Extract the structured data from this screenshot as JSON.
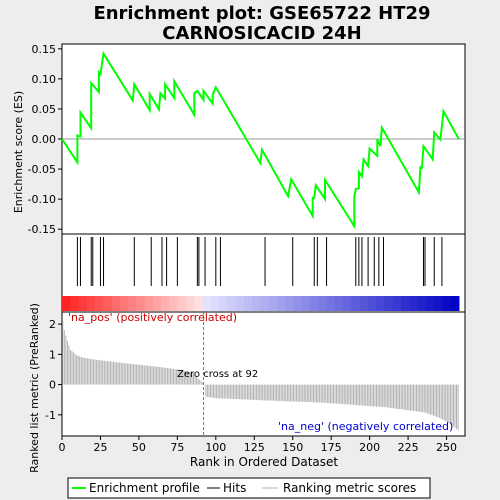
{
  "title_line1": "Enrichment plot: GSE65722 HT29",
  "title_line2": "CARNOSICACID 24H",
  "chart_data": [
    {
      "panel": "enrichment",
      "type": "line",
      "ylabel": "Enrichment score (ES)",
      "xlim": [
        0,
        262
      ],
      "ylim": [
        -0.158,
        0.158
      ],
      "yticks": [
        -0.15,
        -0.1,
        -0.05,
        0.0,
        0.05,
        0.1,
        0.15
      ],
      "ytick_labels": [
        "-0.15",
        "-0.10",
        "-0.05",
        "0.00",
        "0.05",
        "0.10",
        "0.15"
      ],
      "grid": false,
      "color": "#00ff00",
      "points": [
        [
          0,
          0.0
        ],
        [
          10,
          -0.039
        ],
        [
          10,
          0.006
        ],
        [
          12,
          0.004
        ],
        [
          12,
          0.044
        ],
        [
          19,
          0.018
        ],
        [
          19,
          0.093
        ],
        [
          24,
          0.078
        ],
        [
          24,
          0.111
        ],
        [
          25,
          0.108
        ],
        [
          25,
          0.108
        ],
        [
          27,
          0.142
        ],
        [
          46,
          0.064
        ],
        [
          47,
          0.091
        ],
        [
          57,
          0.048
        ],
        [
          57,
          0.075
        ],
        [
          63,
          0.049
        ],
        [
          64,
          0.076
        ],
        [
          67,
          0.067
        ],
        [
          67,
          0.091
        ],
        [
          73,
          0.068
        ],
        [
          73,
          0.096
        ],
        [
          86,
          0.04
        ],
        [
          86,
          0.076
        ],
        [
          88,
          0.08
        ],
        [
          92,
          0.065
        ],
        [
          92,
          0.08
        ],
        [
          98,
          0.059
        ],
        [
          98,
          0.074
        ],
        [
          100,
          0.086
        ],
        [
          129,
          -0.04
        ],
        [
          130,
          -0.018
        ],
        [
          147,
          -0.095
        ],
        [
          149,
          -0.067
        ],
        [
          163,
          -0.128
        ],
        [
          163,
          -0.098
        ],
        [
          164,
          -0.098
        ],
        [
          165,
          -0.077
        ],
        [
          171,
          -0.1
        ],
        [
          171,
          -0.068
        ],
        [
          190,
          -0.145
        ],
        [
          190,
          -0.096
        ],
        [
          191,
          -0.083
        ],
        [
          193,
          -0.082
        ],
        [
          193,
          -0.055
        ],
        [
          195,
          -0.062
        ],
        [
          196,
          -0.034
        ],
        [
          199,
          -0.045
        ],
        [
          200,
          -0.016
        ],
        [
          205,
          -0.028
        ],
        [
          205,
          0.0
        ],
        [
          207,
          -0.012
        ],
        [
          208,
          0.019
        ],
        [
          232,
          -0.089
        ],
        [
          233,
          -0.047
        ],
        [
          234,
          -0.048
        ],
        [
          235,
          -0.012
        ],
        [
          241,
          -0.034
        ],
        [
          242,
          0.011
        ],
        [
          246,
          -0.001
        ],
        [
          248,
          0.046
        ],
        [
          258,
          0.0
        ]
      ]
    },
    {
      "panel": "hits",
      "type": "scatter",
      "xlim": [
        0,
        262
      ],
      "hit_ranks": [
        10,
        12,
        19,
        20,
        25,
        27,
        47,
        58,
        65,
        68,
        75,
        88,
        89,
        93,
        100,
        103,
        132,
        150,
        164,
        166,
        172,
        191,
        193,
        195,
        199,
        203,
        206,
        209,
        235,
        236,
        242,
        247
      ]
    },
    {
      "panel": "ranked_metric",
      "type": "bar",
      "ylabel": "Ranked list metric (PreRanked)",
      "xlabel": "Rank in Ordered Dataset",
      "xlim": [
        0,
        262
      ],
      "ylim": [
        -1.7,
        2.4
      ],
      "xticks": [
        0,
        25,
        50,
        75,
        100,
        125,
        150,
        175,
        200,
        225,
        250
      ],
      "yticks": [
        -1,
        0,
        1,
        2
      ],
      "color": "#b0b0b0",
      "n": 258,
      "zero_cross": 92,
      "anchors": [
        [
          0,
          2.1
        ],
        [
          1,
          1.8
        ],
        [
          3,
          1.45
        ],
        [
          5,
          1.15
        ],
        [
          9,
          0.97
        ],
        [
          14,
          0.88
        ],
        [
          25,
          0.8
        ],
        [
          45,
          0.68
        ],
        [
          60,
          0.6
        ],
        [
          75,
          0.5
        ],
        [
          85,
          0.38
        ],
        [
          91,
          0.05
        ],
        [
          92,
          0.0
        ],
        [
          93,
          -0.4
        ],
        [
          100,
          -0.45
        ],
        [
          130,
          -0.52
        ],
        [
          170,
          -0.6
        ],
        [
          210,
          -0.75
        ],
        [
          235,
          -0.92
        ],
        [
          245,
          -1.1
        ],
        [
          252,
          -1.3
        ],
        [
          258,
          -1.55
        ]
      ],
      "annotations": {
        "zero_cross_label": "Zero cross at 92",
        "pos_label": "'na_pos' (positively correlated)",
        "neg_label": "'na_neg' (negatively correlated)"
      }
    }
  ],
  "legend": {
    "items": [
      {
        "label": "Enrichment profile",
        "color": "#00ff00"
      },
      {
        "label": "Hits",
        "color": "#000000"
      },
      {
        "label": "Ranking metric scores",
        "color": "#b0b0b0"
      }
    ]
  },
  "colors": {
    "enrichment_line": "#00ff00",
    "heatmap_pos": "#ff0000",
    "heatmap_neg": "#0000ff"
  }
}
